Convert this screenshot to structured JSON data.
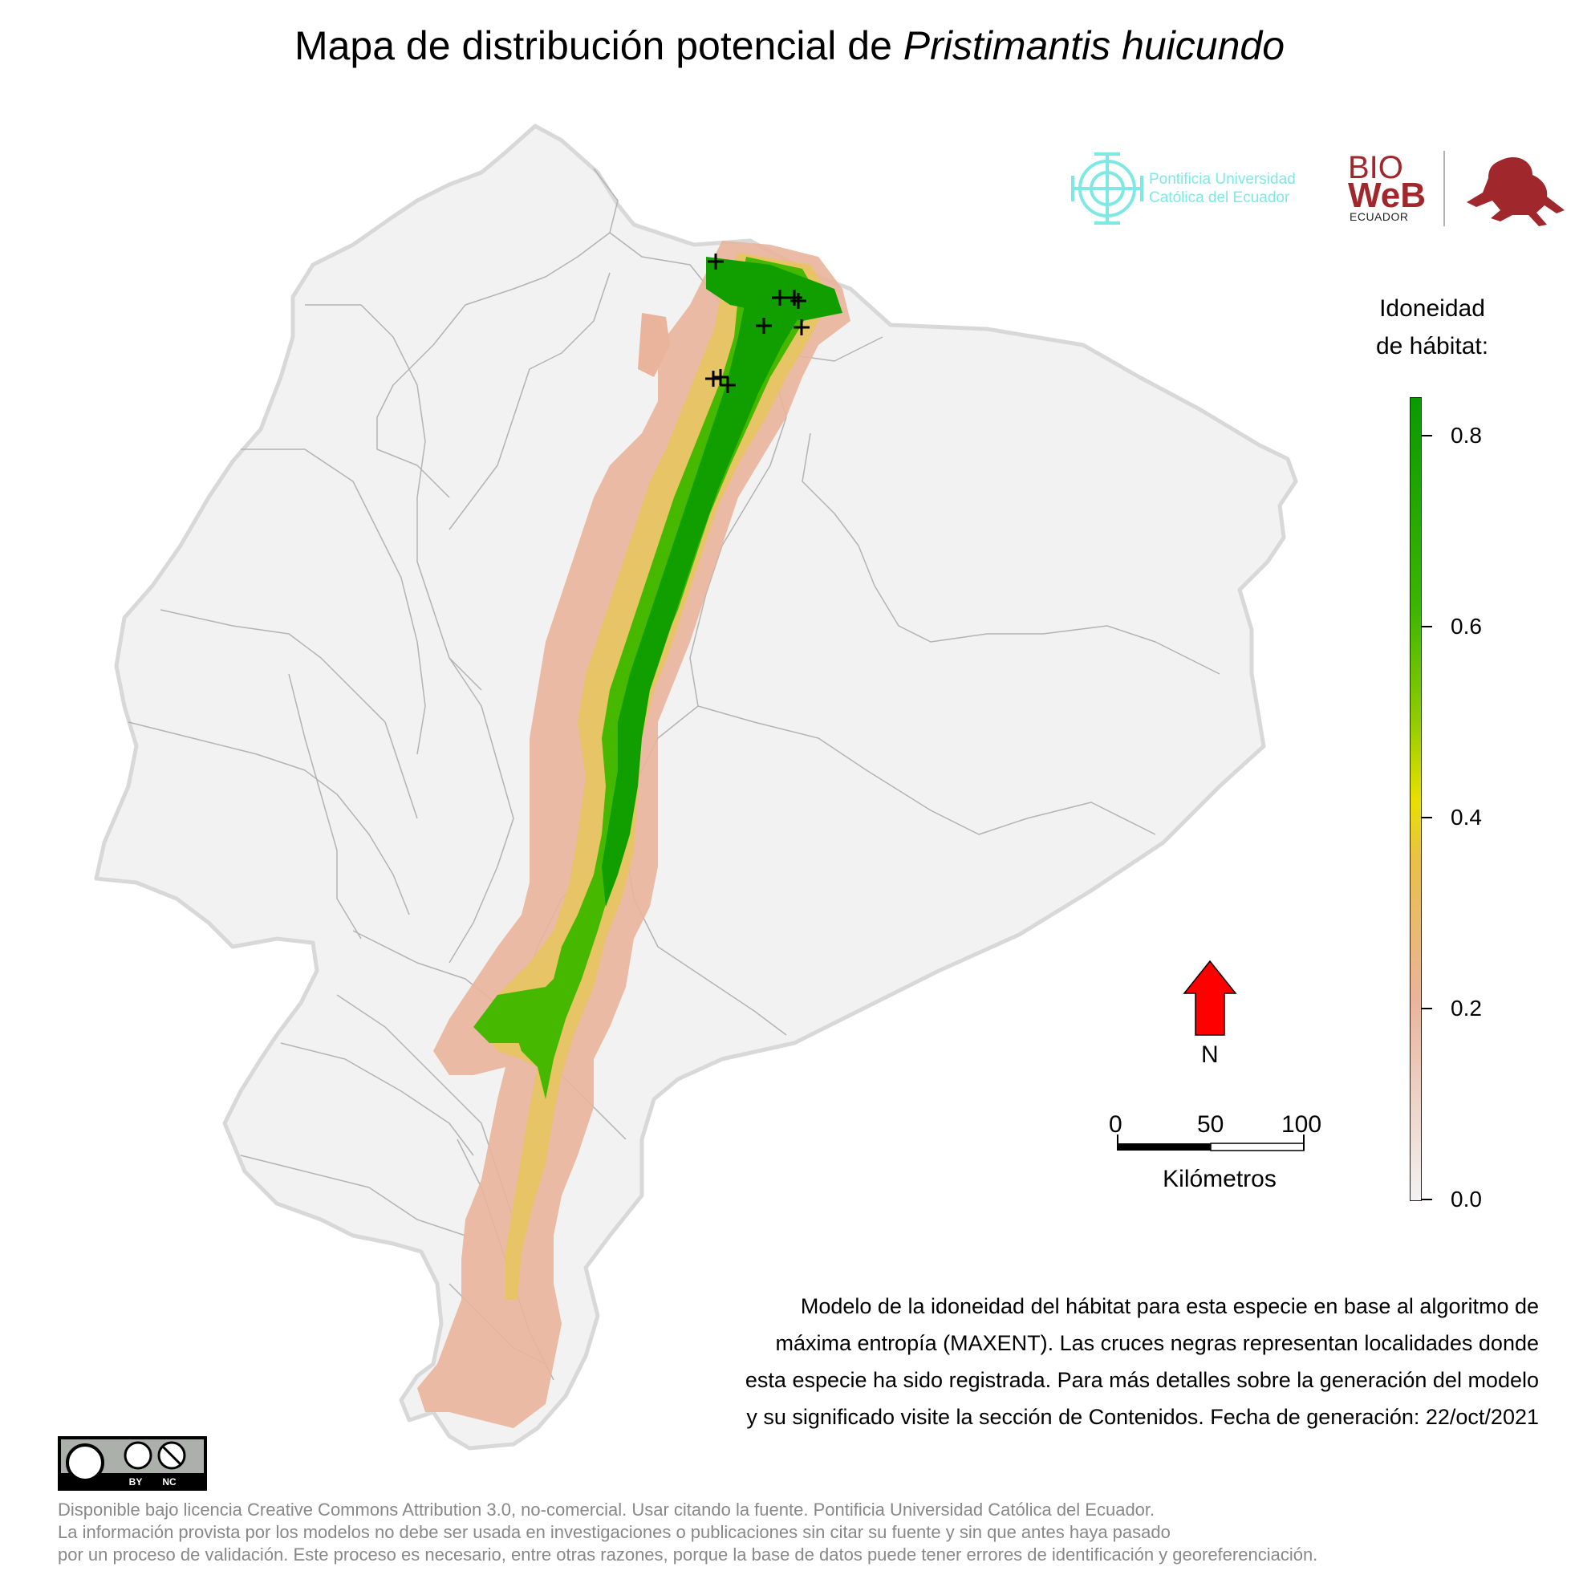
{
  "title": {
    "prefix": "Mapa de distribución potencial de ",
    "species": "Pristimantis huicundo"
  },
  "legend": {
    "title_line1": "Idoneidad",
    "title_line2": "de hábitat:",
    "ticks": [
      "0.8",
      "0.6",
      "0.4",
      "0.2",
      "0.0"
    ],
    "tick_values": [
      0.8,
      0.6,
      0.4,
      0.2,
      0.0
    ],
    "max_value": 0.84,
    "colors": {
      "high": "#0a9a00",
      "mid": "#e8e000",
      "low": "#e9b49b",
      "zero": "#f2f2f2"
    }
  },
  "north_arrow": {
    "label": "N",
    "color": "#ff0000",
    "icon": "north-arrow-icon"
  },
  "scale_bar": {
    "labels": [
      "0",
      "50",
      "100"
    ],
    "unit": "Kilómetros"
  },
  "caption": [
    "Modelo de la idoneidad del hábitat para esta especie en base al algoritmo de",
    "máxima entropía (MAXENT). Las cruces negras representan localidades donde",
    "esta especie ha sido registrada. Para más detalles sobre la generación del modelo",
    "y su significado visite la sección de Contenidos. Fecha de generación: 22/oct/2021"
  ],
  "license": [
    "Disponible bajo licencia Creative Commons Attribution 3.0, no-comercial. Usar citando la fuente. Pontificia Universidad Católica del Ecuador.",
    "La información provista por los modelos no debe ser usada en investigaciones o publicaciones sin citar su fuente y sin que antes haya pasado",
    "por un proceso de validación. Este proceso es necesario, entre otras razones, porque la base de datos puede tener errores de identificación y georeferenciación."
  ],
  "logos": {
    "puce_line1": "Pontificia Universidad",
    "puce_line2": "Católica del Ecuador",
    "puce_color": "#7ee8e4",
    "bioweb_line1": "BIO",
    "bioweb_line2": "WeB",
    "bioweb_sub": "ECUADOR",
    "bioweb_color": "#a0282d"
  },
  "cc_badge": {
    "by": "BY",
    "nc": "NC"
  },
  "colors": {
    "land": "#f2f2f2",
    "borders": "#a8a8a8",
    "occurrence_marker": "#000000"
  }
}
